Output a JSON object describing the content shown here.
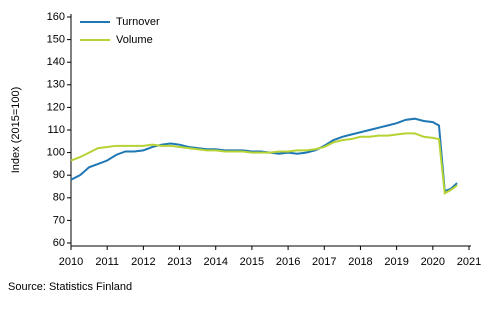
{
  "chart_data": {
    "type": "line",
    "y_label": "Index (2015=100)",
    "source": "Source: Statistics Finland",
    "x": [
      2010,
      2010.25,
      2010.5,
      2010.75,
      2011,
      2011.25,
      2011.5,
      2011.75,
      2012,
      2012.25,
      2012.5,
      2012.75,
      2013,
      2013.25,
      2013.5,
      2013.75,
      2014,
      2014.25,
      2014.5,
      2014.75,
      2015,
      2015.25,
      2015.5,
      2015.75,
      2016,
      2016.25,
      2016.5,
      2016.75,
      2017,
      2017.25,
      2017.5,
      2017.75,
      2018,
      2018.25,
      2018.5,
      2018.75,
      2019,
      2019.25,
      2019.5,
      2019.75,
      2020,
      2020.17,
      2020.33,
      2020.5,
      2020.67
    ],
    "series": [
      {
        "name": "Turnover",
        "color": "#1f77b4",
        "values": [
          88,
          90,
          93.5,
          95,
          96.5,
          99,
          100.5,
          100.5,
          101,
          102.5,
          103.5,
          104,
          103.5,
          102.5,
          102,
          101.5,
          101.5,
          101,
          101,
          101,
          100.5,
          100.5,
          100,
          99.5,
          100,
          99.5,
          100,
          101,
          103,
          105.5,
          107,
          108,
          109,
          110,
          111,
          112,
          113,
          114.5,
          115,
          114,
          113.5,
          112,
          83,
          84,
          86.5
        ]
      },
      {
        "name": "Volume",
        "color": "#b5d334",
        "values": [
          96.5,
          98,
          100,
          102,
          102.5,
          103,
          103,
          103,
          103,
          103.5,
          103,
          103,
          102.5,
          102,
          101.5,
          101,
          101,
          100.5,
          100.5,
          100.5,
          100,
          100,
          100,
          100.5,
          100.5,
          101,
          101,
          101.5,
          102.5,
          104.5,
          105.5,
          106,
          107,
          107,
          107.5,
          107.5,
          108,
          108.5,
          108.5,
          107,
          106.5,
          106,
          82,
          83.5,
          85.5
        ]
      }
    ],
    "xlim": [
      2010,
      2021
    ],
    "xticks": [
      2010,
      2011,
      2012,
      2013,
      2014,
      2015,
      2016,
      2017,
      2018,
      2019,
      2020,
      2021
    ],
    "ylim": [
      60,
      160
    ],
    "yticks": [
      60,
      70,
      80,
      90,
      100,
      110,
      120,
      130,
      140,
      150,
      160
    ],
    "legend": "upper-left"
  }
}
